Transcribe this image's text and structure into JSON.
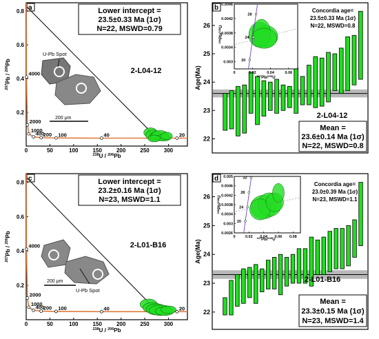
{
  "colors": {
    "ellipse_fill": "#22dd22",
    "ellipse_stroke": "#116611",
    "bar_fill": "#22dd22",
    "bar_stroke": "#000000",
    "concordia": "#e07a3a",
    "mean_band": "#9a9a9a",
    "inset_concordia": "#6b3fbf"
  },
  "chart_data": [
    {
      "panel": "a",
      "type": "scatter",
      "sample": "2-L04-12",
      "xlabel": "238U / 206Pb",
      "ylabel": "207Pb / 206Pb",
      "xlim": [
        0,
        340
      ],
      "ylim": [
        0,
        0.85
      ],
      "xticks": [
        0,
        50,
        100,
        150,
        200,
        250,
        300
      ],
      "yticks": [
        0.2,
        0.4,
        0.6,
        0.8
      ],
      "result_lines": [
        "Lower intercept =",
        "23.5±0.33 Ma (1σ)",
        "N=22, MSWD=0.79"
      ],
      "concordia_labels": [
        {
          "text": "4000",
          "x": 0.6,
          "y": 0.41
        },
        {
          "text": "2000",
          "x": 2.6,
          "y": 0.126
        },
        {
          "text": "1000",
          "x": 5.6,
          "y": 0.073
        },
        {
          "text": "400",
          "x": 15.3,
          "y": 0.055
        },
        {
          "text": "200",
          "x": 31.5,
          "y": 0.05
        },
        {
          "text": "100",
          "x": 63,
          "y": 0.048
        },
        {
          "text": "40",
          "x": 159,
          "y": 0.047
        },
        {
          "text": "20",
          "x": 318,
          "y": 0.047
        }
      ],
      "discordia": {
        "x0": 0,
        "y0": 0.83,
        "x1": 276,
        "y1": 0.047
      },
      "grain_label": "U-Pb Spot",
      "scale_label": "200 μm",
      "ellipses": [
        {
          "x": 262,
          "y": 0.08,
          "rx": 14,
          "ry": 0.028
        },
        {
          "x": 268,
          "y": 0.065,
          "rx": 16,
          "ry": 0.03
        },
        {
          "x": 275,
          "y": 0.058,
          "rx": 15,
          "ry": 0.025
        },
        {
          "x": 282,
          "y": 0.062,
          "rx": 18,
          "ry": 0.03
        },
        {
          "x": 290,
          "y": 0.05,
          "rx": 15,
          "ry": 0.02
        },
        {
          "x": 270,
          "y": 0.045,
          "rx": 13,
          "ry": 0.02
        },
        {
          "x": 296,
          "y": 0.06,
          "rx": 12,
          "ry": 0.022
        }
      ]
    },
    {
      "panel": "b",
      "type": "bar",
      "sample": "2-L04-12",
      "ylabel": "Age(Ma)",
      "ylim": [
        21.5,
        26.8
      ],
      "yticks": [
        22,
        23,
        24,
        25,
        26
      ],
      "mean": 23.6,
      "mean_err": 0.14,
      "result_lines": [
        "Mean =",
        "23.6±0.14 Ma (1σ)",
        "N=22, MSWD=0.8"
      ],
      "bars": [
        {
          "low": 22.3,
          "high": 23.6
        },
        {
          "low": 22.35,
          "high": 23.7
        },
        {
          "low": 22.1,
          "high": 23.85
        },
        {
          "low": 22.2,
          "high": 23.9
        },
        {
          "low": 22.9,
          "high": 24.35
        },
        {
          "low": 22.5,
          "high": 24.2
        },
        {
          "low": 22.8,
          "high": 24.05
        },
        {
          "low": 23.0,
          "high": 24.0
        },
        {
          "low": 22.9,
          "high": 24.1
        },
        {
          "low": 23.0,
          "high": 23.9
        },
        {
          "low": 23.1,
          "high": 23.85
        },
        {
          "low": 22.9,
          "high": 24.5
        },
        {
          "low": 23.2,
          "high": 24.2
        },
        {
          "low": 23.2,
          "high": 24.6
        },
        {
          "low": 23.1,
          "high": 24.9
        },
        {
          "low": 23.15,
          "high": 24.85
        },
        {
          "low": 23.3,
          "high": 25.05
        },
        {
          "low": 23.7,
          "high": 25.0
        },
        {
          "low": 23.6,
          "high": 25.2
        },
        {
          "low": 23.7,
          "high": 25.6
        },
        {
          "low": 23.9,
          "high": 25.65
        },
        {
          "low": 24.1,
          "high": 26.5
        }
      ],
      "inset": {
        "title_lines": [
          "Concordia age=",
          "23.5±0.33 Ma (1σ)",
          "N=22, MSWD=0.8"
        ],
        "xlabel": "207Pb/235U",
        "ylabel": "206Pb/238U",
        "xlim": [
          0,
          0.07
        ],
        "ylim": [
          0.0028,
          0.0046
        ],
        "xticks": [
          0.0,
          0.02,
          0.04,
          0.06
        ],
        "yticks": [
          0.003,
          0.0034,
          0.0038,
          0.0042,
          0.0046
        ],
        "age_labels": [
          {
            "text": "28",
            "x": 0.024,
            "y": 0.00432
          },
          {
            "text": "24",
            "x": 0.021,
            "y": 0.00368
          },
          {
            "text": "20",
            "x": 0.017,
            "y": 0.00305
          }
        ],
        "ellipses": [
          {
            "x": 0.028,
            "y": 0.00375,
            "rx": 0.012,
            "ry": 0.00035
          },
          {
            "x": 0.035,
            "y": 0.0037,
            "rx": 0.013,
            "ry": 0.0003
          },
          {
            "x": 0.03,
            "y": 0.0038,
            "rx": 0.01,
            "ry": 0.00038
          },
          {
            "x": 0.033,
            "y": 0.00365,
            "rx": 0.014,
            "ry": 0.00028
          }
        ]
      }
    },
    {
      "panel": "c",
      "type": "scatter",
      "sample": "2-L01-B16",
      "xlabel": "238U / 206Pb",
      "ylabel": "207Pb / 206Pb",
      "xlim": [
        0,
        340
      ],
      "ylim": [
        0,
        0.85
      ],
      "xticks": [
        0,
        50,
        100,
        150,
        200,
        250,
        300
      ],
      "yticks": [
        0.2,
        0.4,
        0.6,
        0.8
      ],
      "result_lines": [
        "Lower intercept =",
        "23.2±0.16 Ma (1σ)",
        "N=23, MSWD=1.1"
      ],
      "concordia_labels": [
        {
          "text": "4000",
          "x": 0.6,
          "y": 0.41
        },
        {
          "text": "2000",
          "x": 2.6,
          "y": 0.126
        },
        {
          "text": "1000",
          "x": 5.6,
          "y": 0.073
        },
        {
          "text": "400",
          "x": 15.3,
          "y": 0.055
        },
        {
          "text": "200",
          "x": 31.5,
          "y": 0.05
        },
        {
          "text": "100",
          "x": 63,
          "y": 0.048
        },
        {
          "text": "40",
          "x": 159,
          "y": 0.047
        },
        {
          "text": "20",
          "x": 318,
          "y": 0.047
        }
      ],
      "discordia": {
        "x0": 0,
        "y0": 0.83,
        "x1": 277,
        "y1": 0.047
      },
      "grain_label": "U-Pb Spot",
      "scale_label": "200 μm",
      "ellipses": [
        {
          "x": 258,
          "y": 0.09,
          "rx": 18,
          "ry": 0.03
        },
        {
          "x": 266,
          "y": 0.07,
          "rx": 20,
          "ry": 0.03
        },
        {
          "x": 275,
          "y": 0.06,
          "rx": 22,
          "ry": 0.032
        },
        {
          "x": 284,
          "y": 0.055,
          "rx": 25,
          "ry": 0.03
        },
        {
          "x": 292,
          "y": 0.05,
          "rx": 20,
          "ry": 0.025
        },
        {
          "x": 300,
          "y": 0.058,
          "rx": 16,
          "ry": 0.022
        }
      ]
    },
    {
      "panel": "d",
      "type": "bar",
      "sample": "2-L01-B16",
      "ylabel": "Age(Ma)",
      "ylim": [
        21.4,
        26.8
      ],
      "yticks": [
        22,
        23,
        24,
        25,
        26
      ],
      "mean": 23.3,
      "mean_err": 0.15,
      "result_lines": [
        "Mean =",
        "23.3±0.15 Ma (1σ)",
        "N=23, MSWD=1.4"
      ],
      "bars": [
        {
          "low": 21.9,
          "high": 22.5
        },
        {
          "low": 21.9,
          "high": 23.1
        },
        {
          "low": 22.2,
          "high": 23.3
        },
        {
          "low": 22.3,
          "high": 23.5
        },
        {
          "low": 22.5,
          "high": 23.55
        },
        {
          "low": 22.3,
          "high": 23.65
        },
        {
          "low": 22.7,
          "high": 23.5
        },
        {
          "low": 22.8,
          "high": 23.8
        },
        {
          "low": 22.8,
          "high": 23.9
        },
        {
          "low": 22.6,
          "high": 24.0
        },
        {
          "low": 22.9,
          "high": 23.9
        },
        {
          "low": 23.0,
          "high": 24.0
        },
        {
          "low": 23.0,
          "high": 24.2
        },
        {
          "low": 23.0,
          "high": 24.2
        },
        {
          "low": 22.9,
          "high": 24.6
        },
        {
          "low": 23.3,
          "high": 24.5
        },
        {
          "low": 23.3,
          "high": 24.6
        },
        {
          "low": 23.4,
          "high": 24.8
        },
        {
          "low": 23.5,
          "high": 24.9
        },
        {
          "low": 23.5,
          "high": 24.9
        },
        {
          "low": 23.6,
          "high": 25.0
        },
        {
          "low": 23.9,
          "high": 25.2
        },
        {
          "low": 24.3,
          "high": 26.5
        }
      ],
      "inset": {
        "title_lines": [
          "Concordia age=",
          "23.0±0.39 Ma (1σ)",
          "N=23, MSWD=1.1"
        ],
        "xlabel": "207Pb/235U",
        "ylabel": "206Pb/238U",
        "xlim": [
          0,
          0.09
        ],
        "ylim": [
          0.0026,
          0.005
        ],
        "xticks": [
          0.0,
          0.02,
          0.04,
          0.06,
          0.08
        ],
        "yticks": [
          0.0026,
          0.003,
          0.0034,
          0.0038,
          0.0042,
          0.0046,
          0.005
        ],
        "age_labels": [
          {
            "text": "32",
            "x": 0.023,
            "y": 0.00495
          },
          {
            "text": "28",
            "x": 0.02,
            "y": 0.00432
          },
          {
            "text": "24",
            "x": 0.018,
            "y": 0.0037
          },
          {
            "text": "20",
            "x": 0.015,
            "y": 0.0031
          }
        ],
        "ellipses": [
          {
            "x": 0.04,
            "y": 0.0037,
            "rx": 0.018,
            "ry": 0.0005
          },
          {
            "x": 0.048,
            "y": 0.0038,
            "rx": 0.016,
            "ry": 0.0005
          },
          {
            "x": 0.035,
            "y": 0.0036,
            "rx": 0.014,
            "ry": 0.00045
          },
          {
            "x": 0.055,
            "y": 0.0039,
            "rx": 0.012,
            "ry": 0.0004
          },
          {
            "x": 0.06,
            "y": 0.0043,
            "rx": 0.008,
            "ry": 0.0004
          }
        ]
      }
    }
  ]
}
